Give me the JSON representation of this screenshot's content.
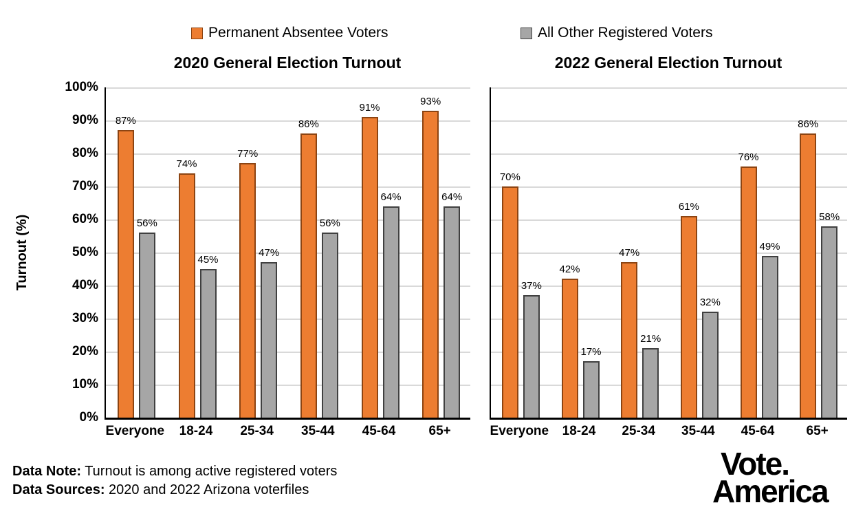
{
  "legend": {
    "items": [
      {
        "label": "Permanent Absentee Voters",
        "icon": "square-swatch-icon",
        "fill": "#ED7D31",
        "border": "#8C4412"
      },
      {
        "label": "All Other Registered Voters",
        "icon": "square-swatch-icon",
        "fill": "#A6A6A6",
        "border": "#404040"
      }
    ]
  },
  "y_axis": {
    "title": "Turnout (%)",
    "tick_labels": [
      "0%",
      "10%",
      "20%",
      "30%",
      "40%",
      "50%",
      "60%",
      "70%",
      "80%",
      "90%",
      "100%"
    ],
    "range": [
      0,
      100
    ],
    "tick_step": 10
  },
  "chart_data": [
    {
      "type": "bar",
      "title": "2020 General Election Turnout",
      "categories": [
        "Everyone",
        "18-24",
        "25-34",
        "35-44",
        "45-64",
        "65+"
      ],
      "series": [
        {
          "name": "Permanent Absentee Voters",
          "values": [
            87,
            74,
            77,
            86,
            91,
            93
          ]
        },
        {
          "name": "All Other Registered Voters",
          "values": [
            56,
            45,
            47,
            56,
            64,
            64
          ]
        }
      ],
      "ylabel": "Turnout (%)",
      "ylim": [
        0,
        100
      ],
      "grid": true,
      "legend_position": "top",
      "value_label_suffix": "%"
    },
    {
      "type": "bar",
      "title": "2022 General Election Turnout",
      "categories": [
        "Everyone",
        "18-24",
        "25-34",
        "35-44",
        "45-64",
        "65+"
      ],
      "series": [
        {
          "name": "Permanent Absentee Voters",
          "values": [
            70,
            42,
            47,
            61,
            76,
            86
          ]
        },
        {
          "name": "All Other Registered Voters",
          "values": [
            37,
            17,
            21,
            32,
            49,
            58
          ]
        }
      ],
      "ylabel": "Turnout (%)",
      "ylim": [
        0,
        100
      ],
      "grid": true,
      "legend_position": "top",
      "value_label_suffix": "%"
    }
  ],
  "footer": {
    "note_label": "Data Note:",
    "note_text": " Turnout is among active registered voters",
    "sources_label": "Data Sources:",
    "sources_text": " 2020 and 2022 Arizona voterfiles"
  },
  "logo": {
    "line1": "Vote.",
    "line2": "America"
  },
  "colors": {
    "gridline": "#D9D9D9",
    "axis": "#000000",
    "background": "#FFFFFF",
    "text": "#000000"
  }
}
